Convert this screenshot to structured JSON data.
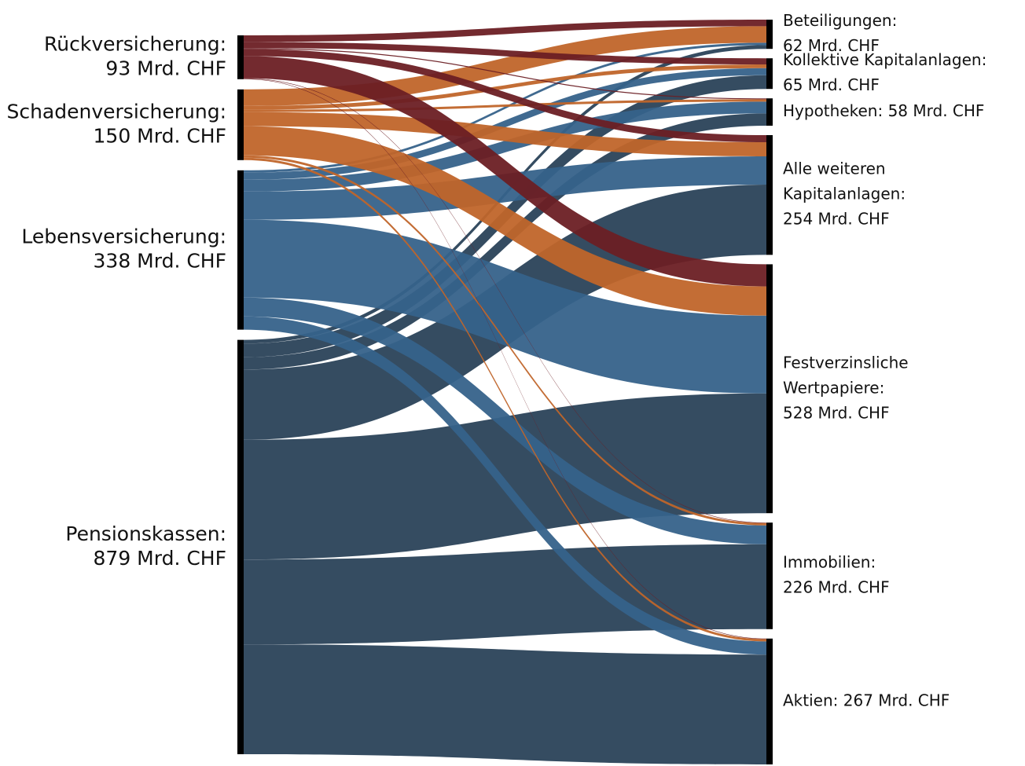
{
  "chart_data": {
    "type": "sankey",
    "nodes": [
      {
        "label": [
          "Rückversicherung:",
          "93 Mrd. CHF"
        ],
        "side": "left",
        "color": "#6b1f24"
      },
      {
        "label": [
          "Schadenversicherung:",
          "150 Mrd. CHF"
        ],
        "side": "left",
        "color": "#c0652a"
      },
      {
        "label": [
          "Lebensversicherung:",
          "338 Mrd. CHF"
        ],
        "side": "left",
        "color": "#36628a"
      },
      {
        "label": [
          "Pensionskassen:",
          "879 Mrd. CHF"
        ],
        "side": "left",
        "color": "#2a4259"
      },
      {
        "label": [
          "Beteiligungen:",
          "62 Mrd. CHF"
        ],
        "side": "right"
      },
      {
        "label": [
          "Kollektive Kapitalanlagen:",
          "65 Mrd. CHF"
        ],
        "side": "right"
      },
      {
        "label": [
          "Hypotheken: 58 Mrd. CHF"
        ],
        "side": "right"
      },
      {
        "label": [
          "Alle weiteren",
          "Kapitalanlagen:",
          "254 Mrd. CHF"
        ],
        "side": "right"
      },
      {
        "label": [
          "Festverzinsliche",
          "Wertpapiere:",
          "528 Mrd. CHF"
        ],
        "side": "right"
      },
      {
        "label": [
          "Immobilien:",
          "226 Mrd. CHF"
        ],
        "side": "right"
      },
      {
        "label": [
          "Aktien: 267 Mrd. CHF"
        ],
        "side": "right"
      }
    ],
    "links": [
      {
        "source": 0,
        "target": 4,
        "value": 14
      },
      {
        "source": 0,
        "target": 5,
        "value": 13
      },
      {
        "source": 0,
        "target": 6,
        "value": 2
      },
      {
        "source": 0,
        "target": 7,
        "value": 15
      },
      {
        "source": 0,
        "target": 8,
        "value": 47
      },
      {
        "source": 0,
        "target": 9,
        "value": 1
      },
      {
        "source": 0,
        "target": 10,
        "value": 1
      },
      {
        "source": 1,
        "target": 4,
        "value": 35
      },
      {
        "source": 1,
        "target": 5,
        "value": 8
      },
      {
        "source": 1,
        "target": 6,
        "value": 5
      },
      {
        "source": 1,
        "target": 7,
        "value": 30
      },
      {
        "source": 1,
        "target": 8,
        "value": 62
      },
      {
        "source": 1,
        "target": 9,
        "value": 5
      },
      {
        "source": 1,
        "target": 10,
        "value": 5
      },
      {
        "source": 2,
        "target": 4,
        "value": 5
      },
      {
        "source": 2,
        "target": 5,
        "value": 15
      },
      {
        "source": 2,
        "target": 6,
        "value": 25
      },
      {
        "source": 2,
        "target": 7,
        "value": 60
      },
      {
        "source": 2,
        "target": 8,
        "value": 165
      },
      {
        "source": 2,
        "target": 9,
        "value": 40
      },
      {
        "source": 2,
        "target": 10,
        "value": 28
      },
      {
        "source": 3,
        "target": 4,
        "value": 8
      },
      {
        "source": 3,
        "target": 5,
        "value": 29
      },
      {
        "source": 3,
        "target": 6,
        "value": 26
      },
      {
        "source": 3,
        "target": 7,
        "value": 149
      },
      {
        "source": 3,
        "target": 8,
        "value": 254
      },
      {
        "source": 3,
        "target": 9,
        "value": 180
      },
      {
        "source": 3,
        "target": 10,
        "value": 233
      }
    ]
  }
}
